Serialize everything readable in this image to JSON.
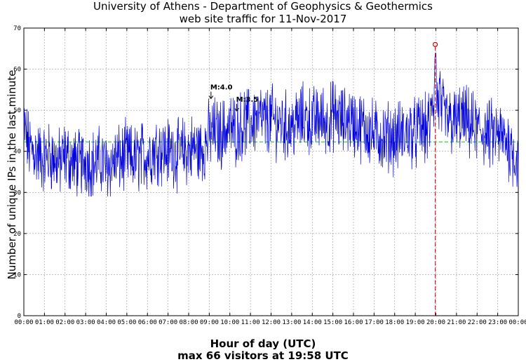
{
  "chart_data": {
    "type": "line",
    "title": "University of Athens - Department of Geophysics & Geothermics",
    "subtitle": "web site traffic for 11-Nov-2017",
    "xlabel": "Hour of day (UTC)",
    "footer": "max 66 visitors at 19:58 UTC",
    "ylabel": "Number of unique IPs in the last minute",
    "xlim": [
      0,
      24
    ],
    "ylim": [
      0,
      70
    ],
    "grid": true,
    "x_ticks": [
      "00:00",
      "01:00",
      "02:00",
      "03:00",
      "04:00",
      "05:00",
      "06:00",
      "07:00",
      "08:00",
      "09:00",
      "10:00",
      "11:00",
      "12:00",
      "13:00",
      "14:00",
      "15:00",
      "16:00",
      "17:00",
      "18:00",
      "19:00",
      "20:00",
      "21:00",
      "22:00",
      "23:00",
      "00:00"
    ],
    "y_ticks": [
      0,
      10,
      20,
      30,
      40,
      50,
      60,
      70
    ],
    "series": [
      {
        "name": "",
        "color": "#0000dd",
        "x": [
          0,
          0.25,
          0.5,
          0.75,
          1,
          1.25,
          1.5,
          1.75,
          2,
          2.25,
          2.5,
          2.75,
          3,
          3.25,
          3.5,
          3.75,
          4,
          4.25,
          4.5,
          4.75,
          5,
          5.25,
          5.5,
          5.75,
          6,
          6.25,
          6.5,
          6.75,
          7,
          7.25,
          7.5,
          7.75,
          8,
          8.25,
          8.5,
          8.75,
          9,
          9.25,
          9.5,
          9.75,
          10,
          10.25,
          10.5,
          10.75,
          11,
          11.25,
          11.5,
          11.75,
          12,
          12.25,
          12.5,
          12.75,
          13,
          13.25,
          13.5,
          13.75,
          14,
          14.25,
          14.5,
          14.75,
          15,
          15.25,
          15.5,
          15.75,
          16,
          16.25,
          16.5,
          16.75,
          17,
          17.25,
          17.5,
          17.75,
          18,
          18.25,
          18.5,
          18.75,
          19,
          19.25,
          19.5,
          19.75,
          19.97,
          20.25,
          20.5,
          20.75,
          21,
          21.25,
          21.5,
          21.75,
          22,
          22.25,
          22.5,
          22.75,
          23,
          23.25,
          23.5,
          23.75,
          24
        ],
        "y": [
          46,
          41,
          40,
          39,
          38,
          39,
          38,
          37,
          39,
          38,
          37,
          37,
          38,
          37,
          37,
          38,
          36,
          37,
          38,
          38,
          39,
          38,
          38,
          39,
          39,
          40,
          41,
          40,
          40,
          40,
          39,
          40,
          40,
          41,
          40,
          41,
          44,
          45,
          44,
          45,
          46,
          45,
          46,
          47,
          47,
          48,
          48,
          47,
          48,
          47,
          47,
          46,
          46,
          47,
          48,
          48,
          47,
          48,
          48,
          47,
          49,
          48,
          47,
          48,
          47,
          46,
          46,
          45,
          44,
          44,
          43,
          44,
          43,
          44,
          44,
          45,
          44,
          46,
          45,
          47,
          66,
          50,
          48,
          47,
          47,
          48,
          47,
          46,
          45,
          45,
          44,
          44,
          44,
          43,
          42,
          40,
          37
        ]
      },
      {
        "name": "",
        "color": "#00cc00",
        "x": [
          0,
          24
        ],
        "y": [
          42.3,
          42.3
        ]
      }
    ],
    "max_point": {
      "x": 19.97,
      "y": 66
    },
    "annotations": [
      {
        "text": "M:4.0",
        "x": 9.05,
        "y": 53
      },
      {
        "text": "M:3.5",
        "x": 10.3,
        "y": 50
      }
    ]
  }
}
